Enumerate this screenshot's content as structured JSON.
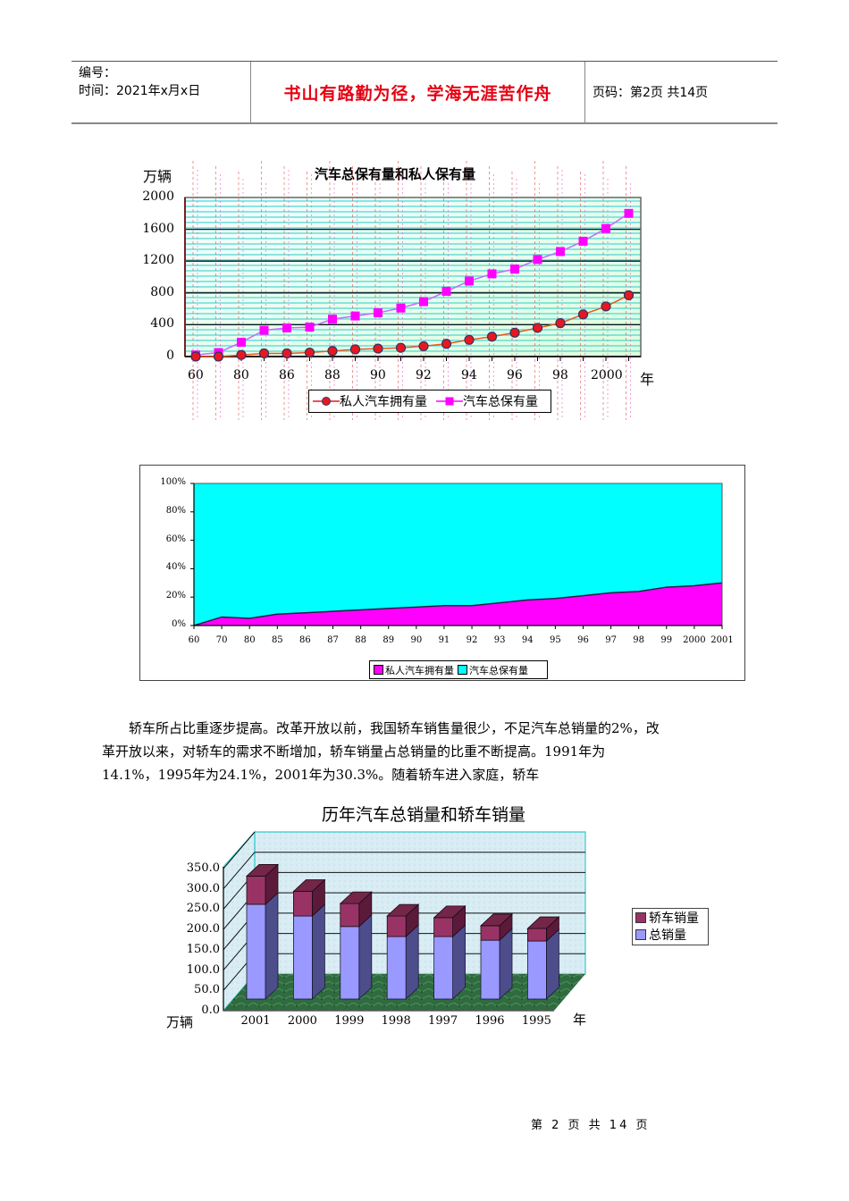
{
  "header": {
    "number_label": "编号：",
    "time_label": "时间：2021年x月x日",
    "motto": "书山有路勤为径，学海无涯苦作舟",
    "page_label": "页码：第2页  共14页"
  },
  "paragraph": {
    "lines": [
      "轿车所占比重逐步提高。改革开放以前，我国轿车销售量很少，不足汽车总销量的2%，改",
      "革开放以来，对轿车的需求不断增加，轿车销量占总销量的比重不断提高。1991年为",
      "14.1%，1995年为24.1%，2001年为30.3%。随着轿车进入家庭，轿车"
    ]
  },
  "footer": {
    "page_text": "第 2 页 共 14 页"
  },
  "colors": {
    "header_motto": "#e60012",
    "private_line": "#e8171f",
    "total_line": "#ff00ff",
    "area_private": "#ff00ff",
    "area_total": "#00ffff",
    "bar_sedan": "#993366",
    "bar_total": "#9999ff"
  },
  "chart_data": [
    {
      "type": "line",
      "title": "汽车总保有量和私人保有量",
      "ylabel": "万辆",
      "xlabel": "年",
      "ylim": [
        0,
        2000
      ],
      "yticks": [
        "2000",
        "1600",
        "1200",
        "800",
        "400",
        "0"
      ],
      "xtick_labels": [
        "60",
        "80",
        "86",
        "88",
        "90",
        "92",
        "94",
        "96",
        "98",
        "2000"
      ],
      "categories": [
        "60",
        "70",
        "80",
        "85",
        "86",
        "87",
        "88",
        "89",
        "90",
        "91",
        "92",
        "93",
        "94",
        "95",
        "96",
        "97",
        "98",
        "99",
        "2000",
        "2001"
      ],
      "series": [
        {
          "name": "私人汽车拥有量",
          "marker": "circle",
          "values": [
            0,
            0,
            20,
            40,
            40,
            50,
            70,
            90,
            100,
            110,
            130,
            160,
            210,
            250,
            300,
            360,
            420,
            530,
            630,
            770
          ]
        },
        {
          "name": "汽车总保有量",
          "marker": "square",
          "values": [
            20,
            50,
            180,
            330,
            360,
            370,
            470,
            510,
            550,
            610,
            690,
            820,
            950,
            1040,
            1100,
            1220,
            1320,
            1450,
            1610,
            1800
          ]
        }
      ],
      "grid": true,
      "legend_position": "bottom"
    },
    {
      "type": "area",
      "title": "",
      "stacked_percent": true,
      "ylim": [
        0,
        100
      ],
      "yticks": [
        "100%",
        "80%",
        "60%",
        "40%",
        "20%",
        "0%"
      ],
      "categories": [
        "60",
        "70",
        "80",
        "85",
        "86",
        "87",
        "88",
        "89",
        "90",
        "91",
        "92",
        "93",
        "94",
        "95",
        "96",
        "97",
        "98",
        "99",
        "2000",
        "2001"
      ],
      "series": [
        {
          "name": "私人汽车拥有量",
          "values": [
            0,
            6,
            5,
            8,
            9,
            10,
            11,
            12,
            13,
            14,
            14,
            16,
            18,
            19,
            21,
            23,
            24,
            27,
            28,
            30
          ]
        },
        {
          "name": "汽车总保有量",
          "values": [
            100,
            94,
            95,
            92,
            91,
            90,
            89,
            88,
            87,
            86,
            86,
            84,
            82,
            81,
            79,
            77,
            76,
            73,
            72,
            70
          ]
        }
      ],
      "legend_position": "bottom"
    },
    {
      "type": "bar",
      "title": "历年汽车总销量和轿车销量",
      "stacked": true,
      "three_d": true,
      "ylabel": "万辆",
      "xlabel": "年",
      "ylim": [
        0,
        350
      ],
      "yticks": [
        "350.0",
        "300.0",
        "250.0",
        "200.0",
        "150.0",
        "100.0",
        "50.0",
        "0.0"
      ],
      "categories": [
        "2001",
        "2000",
        "1999",
        "1998",
        "1997",
        "1996",
        "1995"
      ],
      "series": [
        {
          "name": "总销量",
          "values": [
            235,
            206,
            180,
            155,
            155,
            146,
            144
          ]
        },
        {
          "name": "轿车销量",
          "values": [
            70,
            61,
            57,
            51,
            47,
            36,
            31
          ]
        }
      ],
      "legend_position": "right"
    }
  ]
}
